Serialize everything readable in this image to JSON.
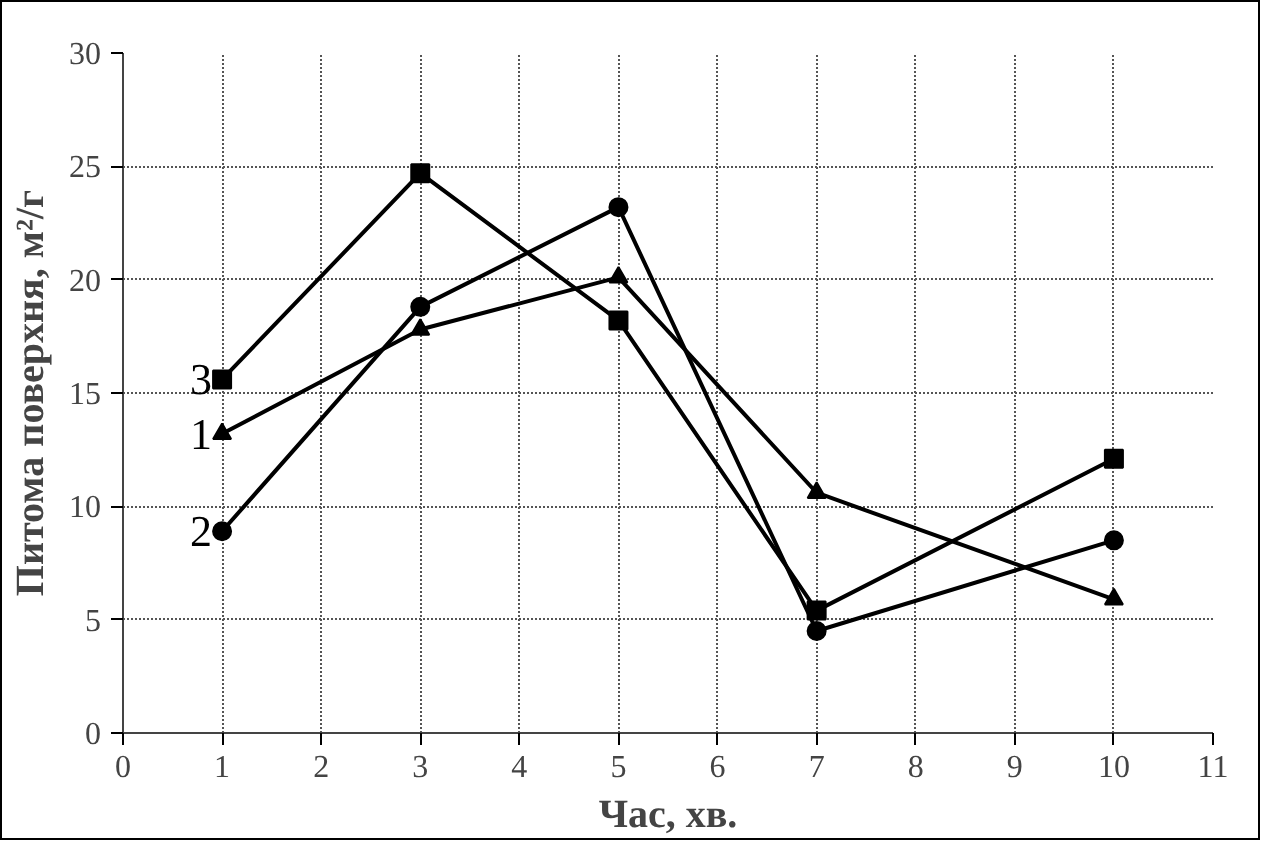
{
  "chart_data": {
    "type": "line",
    "xlabel": "Час, хв.",
    "ylabel": "Питома поверхня, м²/г",
    "x": [
      1,
      3,
      5,
      7,
      10
    ],
    "series": [
      {
        "name": "1",
        "color": "#000000",
        "marker": "triangle",
        "values": [
          13.2,
          17.8,
          20.1,
          10.6,
          5.9
        ]
      },
      {
        "name": "2",
        "color": "#000000",
        "marker": "circle",
        "values": [
          8.9,
          18.8,
          23.2,
          4.5,
          8.5
        ]
      },
      {
        "name": "3",
        "color": "#000000",
        "marker": "square",
        "values": [
          15.6,
          24.7,
          18.2,
          5.4,
          12.1
        ]
      }
    ],
    "xlim": [
      0,
      11
    ],
    "ylim": [
      0,
      30
    ],
    "xticks": [
      0,
      1,
      2,
      3,
      4,
      5,
      6,
      7,
      8,
      9,
      10,
      11
    ],
    "yticks": [
      0,
      5,
      10,
      15,
      20,
      25,
      30
    ],
    "grid": true,
    "line_style": "solid"
  }
}
